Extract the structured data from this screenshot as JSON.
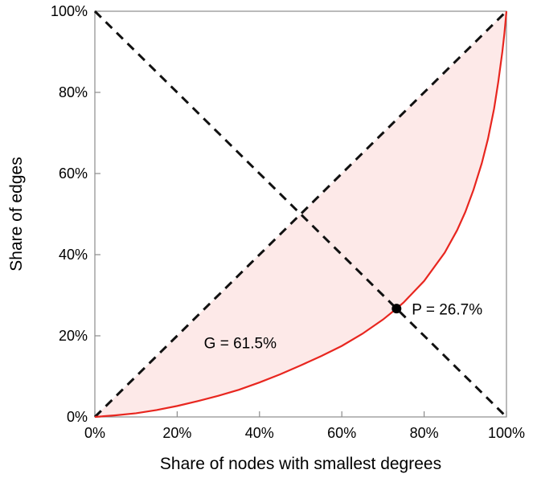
{
  "figure": {
    "kind": "lorenz-curve-plot",
    "background": "#ffffff"
  },
  "chart_data": {
    "type": "line",
    "title": "",
    "xlabel": "Share of nodes with smallest degrees",
    "ylabel": "Share of edges",
    "xlim": [
      0,
      100
    ],
    "ylim": [
      0,
      100
    ],
    "xticks": [
      0,
      20,
      40,
      60,
      80,
      100
    ],
    "yticks": [
      0,
      20,
      40,
      60,
      80,
      100
    ],
    "xtick_labels": [
      "0%",
      "20%",
      "40%",
      "60%",
      "80%",
      "100%"
    ],
    "ytick_labels": [
      "0%",
      "20%",
      "40%",
      "60%",
      "80%",
      "100%"
    ],
    "grid": false,
    "legend": "none",
    "series": [
      {
        "name": "equality-diagonal",
        "style": "dashed",
        "color": "#111111",
        "width": 3,
        "points": [
          [
            0,
            0
          ],
          [
            100,
            100
          ]
        ]
      },
      {
        "name": "anti-diagonal",
        "style": "dashed",
        "color": "#111111",
        "width": 3,
        "points": [
          [
            0,
            100
          ],
          [
            100,
            0
          ]
        ]
      },
      {
        "name": "lorenz-curve",
        "style": "solid",
        "color": "#e8261f",
        "width": 2.2,
        "points": [
          [
            0,
            0
          ],
          [
            5,
            0.4
          ],
          [
            10,
            0.9
          ],
          [
            15,
            1.7
          ],
          [
            20,
            2.7
          ],
          [
            25,
            3.9
          ],
          [
            30,
            5.2
          ],
          [
            35,
            6.7
          ],
          [
            40,
            8.5
          ],
          [
            45,
            10.5
          ],
          [
            50,
            12.7
          ],
          [
            55,
            15.0
          ],
          [
            60,
            17.5
          ],
          [
            65,
            20.5
          ],
          [
            70,
            24.0
          ],
          [
            73.3,
            26.7
          ],
          [
            75,
            28.2
          ],
          [
            80,
            33.5
          ],
          [
            85,
            40.5
          ],
          [
            88,
            46.0
          ],
          [
            90,
            50.5
          ],
          [
            92,
            56.0
          ],
          [
            94,
            62.5
          ],
          [
            95.5,
            68.5
          ],
          [
            97,
            76.0
          ],
          [
            98,
            82.5
          ],
          [
            99,
            90.0
          ],
          [
            99.5,
            94.5
          ],
          [
            100,
            100
          ]
        ]
      }
    ],
    "fill_between": {
      "upper": "equality-diagonal",
      "lower": "lorenz-curve",
      "color": "rgba(232, 38, 31, 0.10)"
    },
    "marker_point": {
      "name": "P",
      "x": 73.3,
      "y": 26.7,
      "color": "#000000",
      "radius": 6
    },
    "annotations": [
      {
        "name": "gini-label",
        "label": "G = 61.5%",
        "x": 26.5,
        "y": 18.0,
        "anchor": "start"
      },
      {
        "name": "p-label",
        "label": "P = 26.7%",
        "x": 77.0,
        "y": 26.3,
        "anchor": "start"
      }
    ],
    "stats": {
      "gini_percent": 61.5,
      "p_percent": 26.7
    },
    "colors": {
      "curve": "#e8261f",
      "fill": "rgba(232, 38, 31, 0.10)",
      "dashed_lines": "#111111",
      "marker": "#000000",
      "frame": "#8c8c8c",
      "text": "#000000"
    }
  }
}
